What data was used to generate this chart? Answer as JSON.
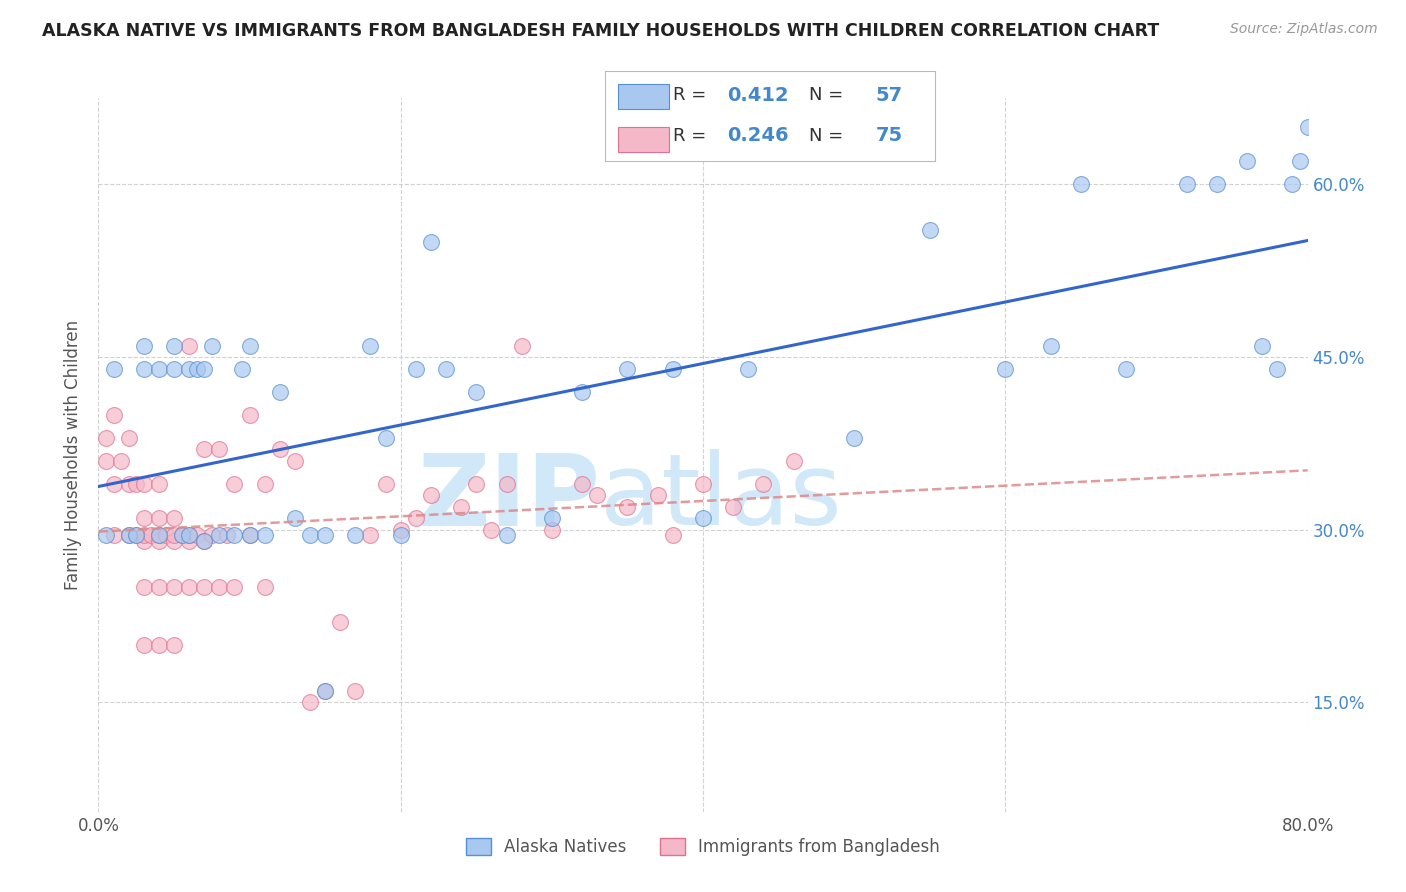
{
  "title": "ALASKA NATIVE VS IMMIGRANTS FROM BANGLADESH FAMILY HOUSEHOLDS WITH CHILDREN CORRELATION CHART",
  "source": "Source: ZipAtlas.com",
  "ylabel": "Family Households with Children",
  "watermark_zip": "ZIP",
  "watermark_atlas": "atlas",
  "xlim": [
    0.0,
    0.8
  ],
  "ylim": [
    0.055,
    0.675
  ],
  "xticks": [
    0.0,
    0.2,
    0.4,
    0.6,
    0.8
  ],
  "xticklabels": [
    "0.0%",
    "",
    "",
    "",
    "80.0%"
  ],
  "yticks": [
    0.15,
    0.3,
    0.45,
    0.6
  ],
  "yticklabels": [
    "15.0%",
    "30.0%",
    "45.0%",
    "60.0%"
  ],
  "blue_R": 0.412,
  "blue_N": 57,
  "pink_R": 0.246,
  "pink_N": 75,
  "blue_color": "#a8c8f0",
  "pink_color": "#f5b8c8",
  "blue_edge_color": "#5590d0",
  "pink_edge_color": "#e07090",
  "blue_line_color": "#3366cc",
  "pink_line_color": "#dd8888",
  "legend_label_blue": "Alaska Natives",
  "legend_label_pink": "Immigrants from Bangladesh",
  "background_color": "#ffffff",
  "grid_color": "#cccccc",
  "title_color": "#222222",
  "source_color": "#999999",
  "watermark_color": "#d0e8f8",
  "right_tick_color": "#4488cc",
  "blue_x": [
    0.005,
    0.01,
    0.02,
    0.025,
    0.03,
    0.03,
    0.04,
    0.04,
    0.05,
    0.05,
    0.055,
    0.06,
    0.06,
    0.065,
    0.07,
    0.07,
    0.075,
    0.08,
    0.09,
    0.095,
    0.1,
    0.1,
    0.11,
    0.12,
    0.13,
    0.14,
    0.15,
    0.15,
    0.17,
    0.18,
    0.19,
    0.2,
    0.21,
    0.22,
    0.23,
    0.25,
    0.27,
    0.3,
    0.32,
    0.35,
    0.38,
    0.4,
    0.43,
    0.5,
    0.55,
    0.6,
    0.63,
    0.65,
    0.68,
    0.72,
    0.74,
    0.76,
    0.77,
    0.78,
    0.79,
    0.795,
    0.8
  ],
  "blue_y": [
    0.295,
    0.44,
    0.295,
    0.295,
    0.44,
    0.46,
    0.44,
    0.295,
    0.44,
    0.46,
    0.295,
    0.44,
    0.295,
    0.44,
    0.29,
    0.44,
    0.46,
    0.295,
    0.295,
    0.44,
    0.295,
    0.46,
    0.295,
    0.42,
    0.31,
    0.295,
    0.16,
    0.295,
    0.295,
    0.46,
    0.38,
    0.295,
    0.44,
    0.55,
    0.44,
    0.42,
    0.295,
    0.31,
    0.42,
    0.44,
    0.44,
    0.31,
    0.44,
    0.38,
    0.56,
    0.44,
    0.46,
    0.6,
    0.44,
    0.6,
    0.6,
    0.62,
    0.46,
    0.44,
    0.6,
    0.62,
    0.65
  ],
  "pink_x": [
    0.005,
    0.005,
    0.01,
    0.01,
    0.01,
    0.015,
    0.02,
    0.02,
    0.02,
    0.025,
    0.025,
    0.03,
    0.03,
    0.03,
    0.03,
    0.03,
    0.03,
    0.035,
    0.04,
    0.04,
    0.04,
    0.04,
    0.04,
    0.04,
    0.045,
    0.05,
    0.05,
    0.05,
    0.05,
    0.05,
    0.055,
    0.06,
    0.06,
    0.06,
    0.06,
    0.065,
    0.07,
    0.07,
    0.07,
    0.075,
    0.08,
    0.08,
    0.085,
    0.09,
    0.09,
    0.1,
    0.1,
    0.11,
    0.11,
    0.12,
    0.13,
    0.14,
    0.15,
    0.16,
    0.17,
    0.18,
    0.19,
    0.2,
    0.21,
    0.22,
    0.24,
    0.25,
    0.26,
    0.27,
    0.28,
    0.3,
    0.32,
    0.33,
    0.35,
    0.37,
    0.38,
    0.4,
    0.42,
    0.44,
    0.46
  ],
  "pink_y": [
    0.36,
    0.38,
    0.295,
    0.34,
    0.4,
    0.36,
    0.295,
    0.34,
    0.38,
    0.295,
    0.34,
    0.2,
    0.25,
    0.29,
    0.295,
    0.31,
    0.34,
    0.295,
    0.2,
    0.25,
    0.29,
    0.295,
    0.31,
    0.34,
    0.295,
    0.2,
    0.25,
    0.29,
    0.295,
    0.31,
    0.295,
    0.25,
    0.29,
    0.295,
    0.46,
    0.295,
    0.25,
    0.29,
    0.37,
    0.295,
    0.25,
    0.37,
    0.295,
    0.25,
    0.34,
    0.295,
    0.4,
    0.25,
    0.34,
    0.37,
    0.36,
    0.15,
    0.16,
    0.22,
    0.16,
    0.295,
    0.34,
    0.3,
    0.31,
    0.33,
    0.32,
    0.34,
    0.3,
    0.34,
    0.46,
    0.3,
    0.34,
    0.33,
    0.32,
    0.33,
    0.295,
    0.34,
    0.32,
    0.34,
    0.36
  ]
}
